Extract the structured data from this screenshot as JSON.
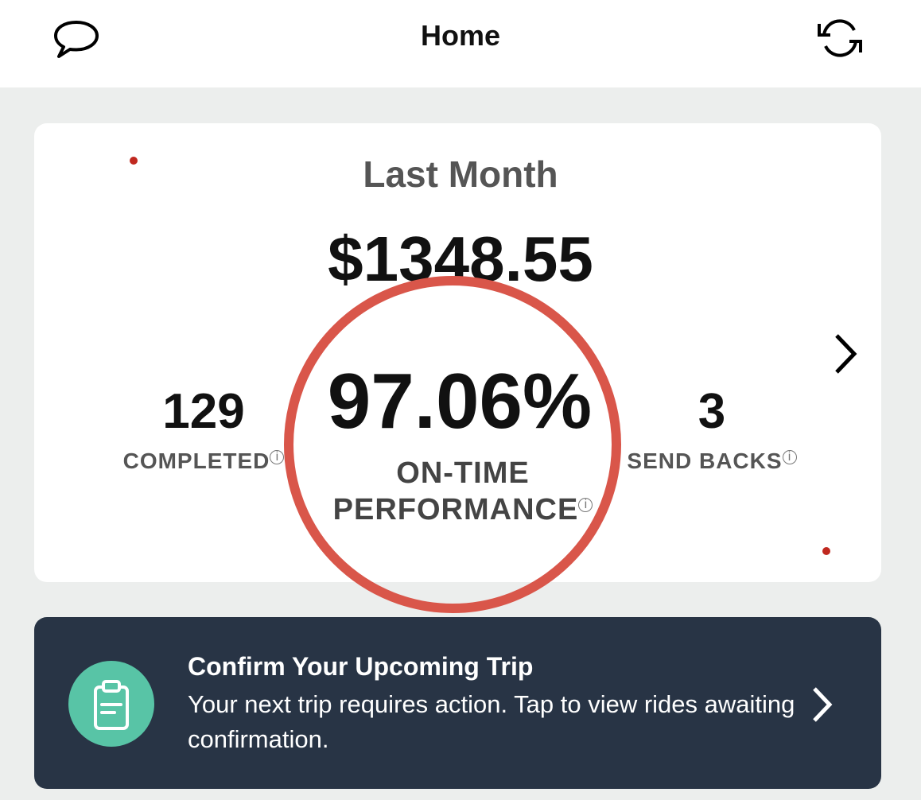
{
  "header": {
    "title": "Home",
    "left_icon": "chat-bubble-icon",
    "right_icon": "refresh-icon"
  },
  "stats_card": {
    "period": "Last Month",
    "earnings": "$1348.55",
    "completed": {
      "value": "129",
      "label": "COMPLETED"
    },
    "on_time": {
      "value": "97.06%",
      "label_line1": "ON-TIME",
      "label_line2": "PERFORMANCE"
    },
    "send_backs": {
      "value": "3",
      "label": "SEND BACKS"
    },
    "info_glyph": "i",
    "highlight_color": "#d9564a"
  },
  "banner": {
    "title": "Confirm Your Upcoming Trip",
    "body": "Your next trip requires action. Tap to view rides awaiting confirmation.",
    "icon": "clipboard-icon",
    "icon_bg": "#58c4a6",
    "bg": "#283445"
  }
}
